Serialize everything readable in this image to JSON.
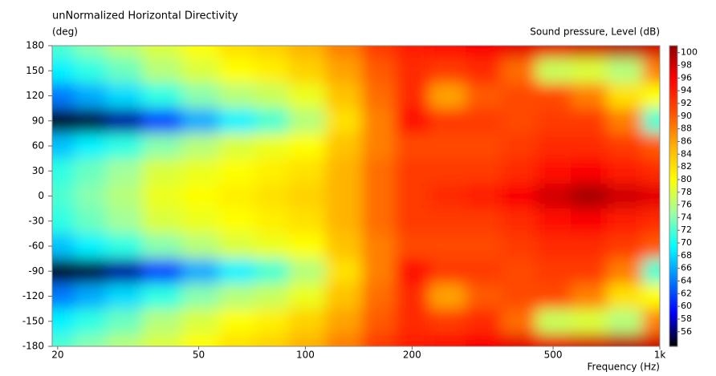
{
  "chart_data": {
    "type": "heatmap",
    "title": "unNormalized Horizontal Directivity",
    "y_label": "(deg)",
    "x_label": "Frequency  (Hz)",
    "colorbar_label": "Sound pressure, Level  (dB)",
    "x_scale": "log",
    "x": [
      20,
      25,
      30,
      40,
      50,
      65,
      80,
      100,
      130,
      160,
      200,
      250,
      320,
      400,
      500,
      630,
      800,
      1000
    ],
    "y": [
      180,
      150,
      120,
      90,
      60,
      30,
      0,
      -30,
      -60,
      -90,
      -120,
      -150,
      -180
    ],
    "z": [
      [
        72,
        74,
        76,
        78,
        80,
        82,
        83,
        85,
        88,
        92,
        94,
        95,
        96,
        97,
        97,
        98,
        99,
        98
      ],
      [
        69,
        71,
        73,
        76,
        78,
        80,
        81,
        83,
        86,
        90,
        93,
        92,
        93,
        89,
        77,
        78,
        76,
        88
      ],
      [
        64,
        66,
        68,
        71,
        74,
        76,
        77,
        79,
        84,
        89,
        93,
        86,
        90,
        91,
        91,
        88,
        82,
        80
      ],
      [
        54,
        55,
        57,
        62,
        66,
        69,
        72,
        76,
        82,
        88,
        95,
        92,
        92,
        91,
        92,
        92,
        88,
        72
      ],
      [
        67,
        69,
        71,
        74,
        76,
        78,
        79,
        80,
        84,
        88,
        91,
        91,
        91,
        92,
        93,
        93,
        92,
        90
      ],
      [
        71,
        73,
        75,
        78,
        79,
        80,
        81,
        82,
        85,
        89,
        92,
        92,
        92,
        93,
        95,
        96,
        94,
        93
      ],
      [
        72,
        74,
        76,
        79,
        80,
        81,
        82,
        83,
        85,
        89,
        92,
        93,
        94,
        96,
        98,
        100,
        98,
        97
      ],
      [
        71,
        73,
        75,
        78,
        79,
        80,
        81,
        82,
        85,
        89,
        92,
        92,
        92,
        93,
        95,
        96,
        94,
        93
      ],
      [
        67,
        69,
        71,
        74,
        76,
        78,
        79,
        80,
        84,
        88,
        91,
        91,
        91,
        92,
        93,
        93,
        92,
        90
      ],
      [
        54,
        55,
        57,
        62,
        66,
        69,
        72,
        76,
        82,
        88,
        95,
        92,
        92,
        91,
        92,
        92,
        88,
        72
      ],
      [
        64,
        66,
        68,
        71,
        74,
        76,
        77,
        79,
        84,
        89,
        93,
        86,
        90,
        91,
        91,
        88,
        82,
        80
      ],
      [
        69,
        71,
        73,
        76,
        78,
        80,
        81,
        83,
        86,
        90,
        93,
        92,
        93,
        89,
        77,
        78,
        76,
        88
      ],
      [
        72,
        74,
        76,
        78,
        80,
        82,
        83,
        85,
        88,
        92,
        94,
        95,
        96,
        97,
        97,
        98,
        99,
        98
      ]
    ],
    "xlim": [
      19.3,
      1000
    ],
    "xticks": [
      20,
      50,
      100,
      200,
      500,
      {
        "value": 1000,
        "label": "1k"
      }
    ],
    "ylim": [
      -180,
      180
    ],
    "yticks": [
      180,
      150,
      120,
      90,
      60,
      30,
      0,
      -30,
      -60,
      -90,
      -120,
      -150,
      -180
    ],
    "clim": [
      53.7,
      101.1
    ],
    "cticks": [
      100,
      98,
      96,
      94,
      92,
      90,
      88,
      86,
      84,
      82,
      80,
      78,
      76,
      74,
      72,
      70,
      68,
      66,
      64,
      62,
      60,
      58,
      56
    ],
    "colormap": [
      "#000000",
      "#0000ff",
      "#0080ff",
      "#00ffff",
      "#a0ffa0",
      "#ffff00",
      "#ffb000",
      "#ff5000",
      "#ff0000",
      "#900000"
    ]
  }
}
